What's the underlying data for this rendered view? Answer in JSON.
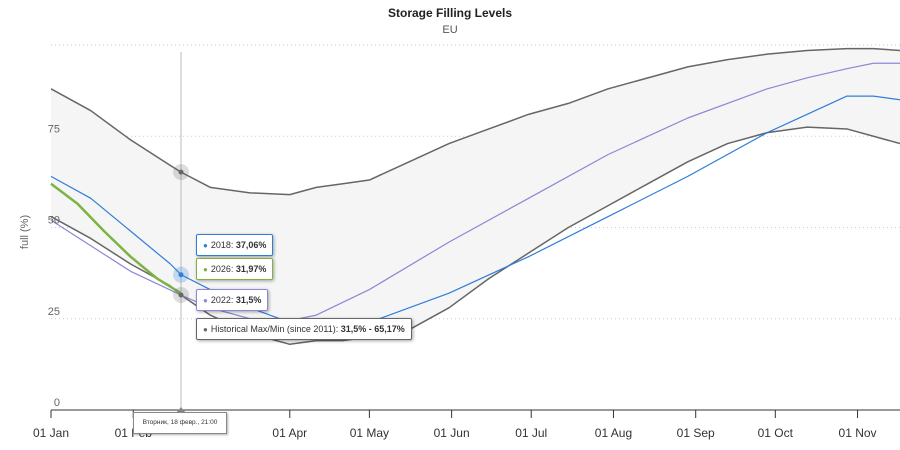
{
  "chart_data": {
    "type": "area",
    "title": "Storage Filling Levels",
    "subtitle": "EU",
    "ylabel": "full (%)",
    "ylim": [
      0,
      100
    ],
    "yticks": [
      "0",
      "25",
      "50",
      "75"
    ],
    "x_tick_labels": [
      "01 Jan",
      "01 Feb",
      "01 Apr",
      "01 May",
      "01 Jun",
      "01 Jul",
      "01 Aug",
      "01 Sep",
      "01 Oct",
      "01 Nov"
    ],
    "x_tick_days": [
      0,
      31,
      90,
      120,
      151,
      181,
      212,
      243,
      273,
      304
    ],
    "grid": true,
    "colors": {
      "2018": "#2f7ed8",
      "2026": "#7cb342",
      "2022": "#8a88d8",
      "historical": "#666666",
      "band": "#f5f5f5"
    },
    "band": {
      "name": "Historical Max/Min (since 2011)",
      "x": [
        0,
        15,
        30,
        45,
        49,
        60,
        75,
        90,
        100,
        110,
        120,
        135,
        150,
        165,
        180,
        195,
        210,
        225,
        240,
        255,
        270,
        285,
        300,
        310,
        320
      ],
      "max": [
        88,
        82,
        74,
        67,
        65.17,
        61,
        59.5,
        59,
        61,
        62,
        63,
        68,
        73,
        77,
        81,
        84,
        88,
        91,
        94,
        96,
        97.5,
        98.5,
        99,
        99,
        98.5
      ],
      "min": [
        53,
        47,
        40,
        34,
        31.5,
        26,
        21,
        18,
        19,
        19,
        20,
        22,
        28,
        36,
        43,
        50,
        56,
        62,
        68,
        73,
        76,
        77.5,
        77,
        75,
        73
      ]
    },
    "series": [
      {
        "name": "2018",
        "x": [
          0,
          15,
          30,
          45,
          49,
          60,
          75,
          90,
          100,
          120,
          150,
          180,
          210,
          240,
          270,
          285,
          300,
          310,
          320
        ],
        "values": [
          64,
          58,
          49,
          40,
          37.06,
          33,
          28,
          24,
          23,
          24,
          32,
          42,
          53,
          64,
          76,
          81,
          86,
          86,
          85
        ]
      },
      {
        "name": "2022",
        "x": [
          0,
          30,
          49,
          60,
          75,
          90,
          100,
          120,
          150,
          180,
          210,
          240,
          270,
          285,
          300,
          310,
          320
        ],
        "values": [
          52,
          38,
          31.5,
          28,
          25,
          24.5,
          26,
          33,
          46,
          58,
          70,
          80,
          88,
          91,
          93.5,
          95,
          95
        ]
      },
      {
        "name": "2026",
        "x": [
          0,
          10,
          20,
          30,
          40,
          49
        ],
        "values": [
          62,
          56.5,
          49,
          42,
          36,
          31.97
        ]
      }
    ],
    "tooltips": [
      {
        "series": "2018",
        "label": "2018: ",
        "value": "37,06%"
      },
      {
        "series": "2026",
        "label": "2026: ",
        "value": "31,97%"
      },
      {
        "series": "2022",
        "label": "2022: ",
        "value": "31,5%"
      },
      {
        "series": "historical",
        "label": "Historical Max/Min (since 2011): ",
        "value": "31,5% - 65,17%"
      }
    ],
    "crosshair": {
      "day": 49,
      "label": "Вторник, 18 февр., 21:00"
    }
  }
}
